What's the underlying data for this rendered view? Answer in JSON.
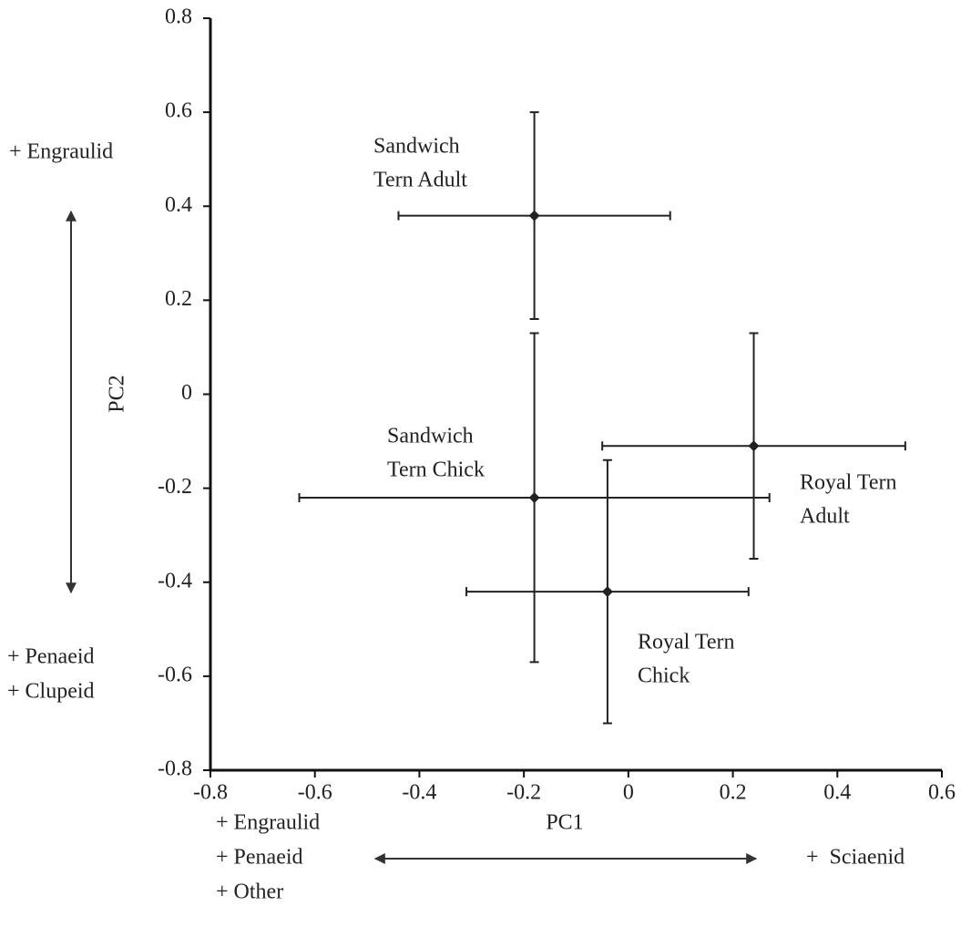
{
  "chart_data": {
    "type": "scatter",
    "xlabel": "PC1",
    "ylabel": "PC2",
    "xlim": [
      -0.8,
      0.6
    ],
    "ylim": [
      -0.8,
      0.8
    ],
    "xticks": [
      -0.8,
      -0.6,
      -0.4,
      -0.2,
      0,
      0.2,
      0.4,
      0.6
    ],
    "yticks": [
      -0.8,
      -0.6,
      -0.4,
      -0.2,
      0,
      0.2,
      0.4,
      0.6,
      0.8
    ],
    "series": [
      {
        "color": "#222222",
        "x": [
          -0.18,
          -0.18,
          0.24,
          -0.04
        ],
        "values": [
          0.38,
          -0.22,
          -0.11,
          -0.42
        ],
        "xerr": [
          0.26,
          0.45,
          0.29,
          0.27
        ],
        "yerr": [
          0.22,
          0.35,
          0.24,
          0.28
        ]
      }
    ],
    "point_labels": [
      [
        "Sandwich",
        "Tern Adult"
      ],
      [
        "Sandwich",
        "Tern Chick"
      ],
      [
        "Royal Tern",
        "Adult"
      ],
      [
        "Royal Tern",
        "Chick"
      ]
    ],
    "annotations": {
      "pc2_positive": [
        "+ Engraulid"
      ],
      "pc2_negative": [
        "+ Penaeid",
        "+ Clupeid"
      ],
      "pc1_negative": [
        "+ Engraulid",
        "+ Penaeid",
        "+ Other"
      ],
      "pc1_positive": [
        "+  Sciaenid"
      ]
    }
  }
}
